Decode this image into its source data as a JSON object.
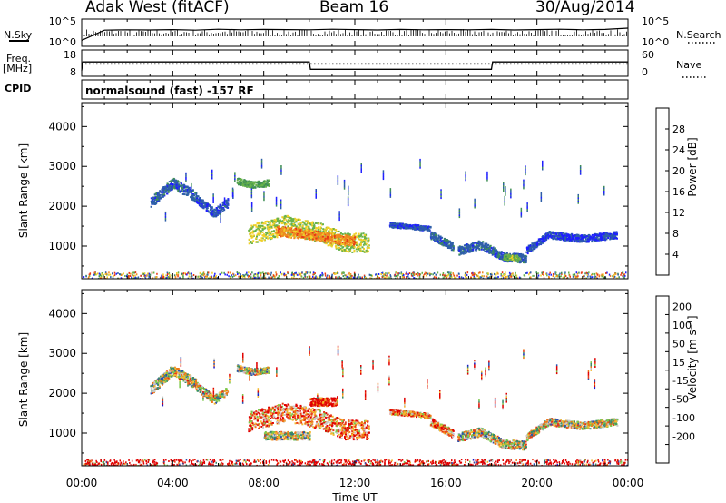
{
  "header": {
    "station": "Adak West (fitACF)",
    "beam": "Beam 16",
    "date": "30/Aug/2014"
  },
  "left_labels": {
    "nsky": "N.Sky",
    "freq": "Freq.",
    "freq_unit": "[MHz]",
    "cpid": "CPID"
  },
  "right_labels": {
    "nsearch": "N.Search",
    "nave": "Nave"
  },
  "cpid_text": "normalsound (fast) -157 RF",
  "colors": {
    "line": "#000000",
    "background": "#ffffff"
  },
  "chart_data": [
    {
      "type": "line",
      "name": "noise",
      "x": [
        0,
        1,
        2,
        3,
        4,
        5,
        6,
        7,
        8,
        9,
        10,
        11,
        12,
        13,
        14,
        15,
        16,
        17,
        18,
        19,
        20,
        21,
        22,
        23,
        24
      ],
      "series": [
        {
          "values": [
            10,
            1000,
            1200,
            1100,
            1300,
            1000,
            1500,
            1200,
            1400,
            1300,
            1200,
            1500,
            1300,
            1100,
            1400,
            1200,
            1300,
            1200,
            1400,
            1100,
            1300,
            1500,
            1200,
            1400,
            2500
          ]
        }
      ],
      "left_ticks": [
        "10^5",
        "10^0"
      ],
      "right_ticks": [
        "10^5",
        "10^0"
      ],
      "xlim": [
        0,
        24
      ]
    },
    {
      "type": "line",
      "name": "frequency",
      "x": [
        0,
        0.05,
        10,
        10.05,
        18,
        18.05,
        24
      ],
      "series": [
        {
          "values": [
            10,
            13.5,
            13.5,
            10.5,
            10.5,
            13.5,
            13.5
          ]
        }
      ],
      "ylim": [
        8,
        18
      ],
      "left_ticks": [
        "18",
        "8"
      ],
      "right_ticks": [
        "60",
        "0"
      ],
      "nave_level": 28,
      "nave_ylim": [
        0,
        60
      ],
      "xlim": [
        0,
        24
      ]
    },
    {
      "type": "heatmap",
      "name": "power",
      "ylabel": "Slant Range [km]",
      "yticks": [
        "1000",
        "2000",
        "3000",
        "4000"
      ],
      "ylim": [
        180,
        4600
      ],
      "xlim": [
        0,
        24
      ],
      "colorbar_label": "Power [dB]",
      "colorbar_ticks": [
        "4",
        "8",
        "12",
        "16",
        "20",
        "24",
        "28"
      ],
      "colorbar_range": [
        0,
        32
      ],
      "colorbar_colors": [
        "#1f1fff",
        "#2e5fa8",
        "#3f8f55",
        "#67b24a",
        "#f0d028",
        "#ee8a20",
        "#e83a15",
        "#e00000"
      ],
      "features": [
        {
          "t": [
            3.0,
            4.0,
            5.0
          ],
          "r": [
            2100,
            2600,
            2250
          ],
          "thick": 260,
          "level": 6
        },
        {
          "t": [
            5.0,
            5.8,
            6.4
          ],
          "r": [
            2200,
            1850,
            2100
          ],
          "thick": 220,
          "level": 5
        },
        {
          "t": [
            6.8,
            7.5,
            8.2
          ],
          "r": [
            2650,
            2550,
            2600
          ],
          "thick": 160,
          "level": 12
        },
        {
          "t": [
            7.3,
            9.0,
            10.5,
            11.5,
            12.6
          ],
          "r": [
            1300,
            1550,
            1350,
            1100,
            1100
          ],
          "thick": 480,
          "level": 16
        },
        {
          "t": [
            8.5,
            10.0,
            11.0,
            12.0
          ],
          "r": [
            1400,
            1300,
            1200,
            1150
          ],
          "thick": 250,
          "level": 22
        },
        {
          "t": [
            13.5,
            14.5,
            15.3
          ],
          "r": [
            1550,
            1500,
            1450
          ],
          "thick": 120,
          "level": 5
        },
        {
          "t": [
            15.3,
            16.3
          ],
          "r": [
            1300,
            1000
          ],
          "thick": 200,
          "level": 6
        },
        {
          "t": [
            16.5,
            17.5,
            18.5,
            19.5
          ],
          "r": [
            900,
            1050,
            750,
            700
          ],
          "thick": 220,
          "level": 6
        },
        {
          "t": [
            18.5,
            19.2
          ],
          "r": [
            750,
            700
          ],
          "thick": 150,
          "level": 14
        },
        {
          "t": [
            19.5,
            20.5,
            22.0,
            23.5
          ],
          "r": [
            900,
            1300,
            1200,
            1300
          ],
          "thick": 180,
          "level": 4
        }
      ]
    },
    {
      "type": "heatmap",
      "name": "velocity",
      "xlabel": "Time UT",
      "xticks": [
        "00:00",
        "04:00",
        "08:00",
        "12:00",
        "16:00",
        "20:00",
        "00:00"
      ],
      "ylabel": "Slant Range [km]",
      "yticks": [
        "1000",
        "2000",
        "3000",
        "4000"
      ],
      "ylim": [
        180,
        4600
      ],
      "xlim": [
        0,
        24
      ],
      "colorbar_label": "Velocity [m s⁻¹]",
      "colorbar_ticks": [
        "200",
        "100",
        "50",
        "15",
        "-15",
        "-50",
        "-100",
        "-200"
      ],
      "colorbar_colors": [
        "#1a1acc",
        "#2a4fb0",
        "#3a8a6a",
        "#7cc84a",
        "#c8c8c8",
        "#f4b830",
        "#ee7818",
        "#e83818",
        "#e00000"
      ],
      "features": [
        {
          "t": [
            3.0,
            4.0,
            5.0
          ],
          "r": [
            2100,
            2600,
            2250
          ],
          "thick": 260,
          "level": 4
        },
        {
          "t": [
            5.0,
            5.8,
            6.4
          ],
          "r": [
            2200,
            1850,
            2100
          ],
          "thick": 220,
          "level": 4
        },
        {
          "t": [
            6.8,
            7.5,
            8.2
          ],
          "r": [
            2650,
            2550,
            2600
          ],
          "thick": 160,
          "level": 4
        },
        {
          "t": [
            7.3,
            9.0,
            10.5,
            11.5,
            12.6
          ],
          "r": [
            1300,
            1550,
            1350,
            1100,
            1100
          ],
          "thick": 480,
          "level": 6
        },
        {
          "t": [
            10.0,
            11.2
          ],
          "r": [
            1800,
            1800
          ],
          "thick": 200,
          "level": 8
        },
        {
          "t": [
            8.0,
            10.0
          ],
          "r": [
            950,
            950
          ],
          "thick": 200,
          "level": 4
        },
        {
          "t": [
            13.5,
            14.5,
            15.3
          ],
          "r": [
            1550,
            1500,
            1450
          ],
          "thick": 120,
          "level": 6
        },
        {
          "t": [
            15.3,
            16.3
          ],
          "r": [
            1300,
            1000
          ],
          "thick": 200,
          "level": 6
        },
        {
          "t": [
            16.5,
            17.5,
            18.5,
            19.5
          ],
          "r": [
            900,
            1050,
            750,
            700
          ],
          "thick": 220,
          "level": 4
        },
        {
          "t": [
            19.5,
            20.5,
            22.0,
            23.5
          ],
          "r": [
            900,
            1300,
            1200,
            1300
          ],
          "thick": 180,
          "level": 4
        }
      ]
    }
  ]
}
